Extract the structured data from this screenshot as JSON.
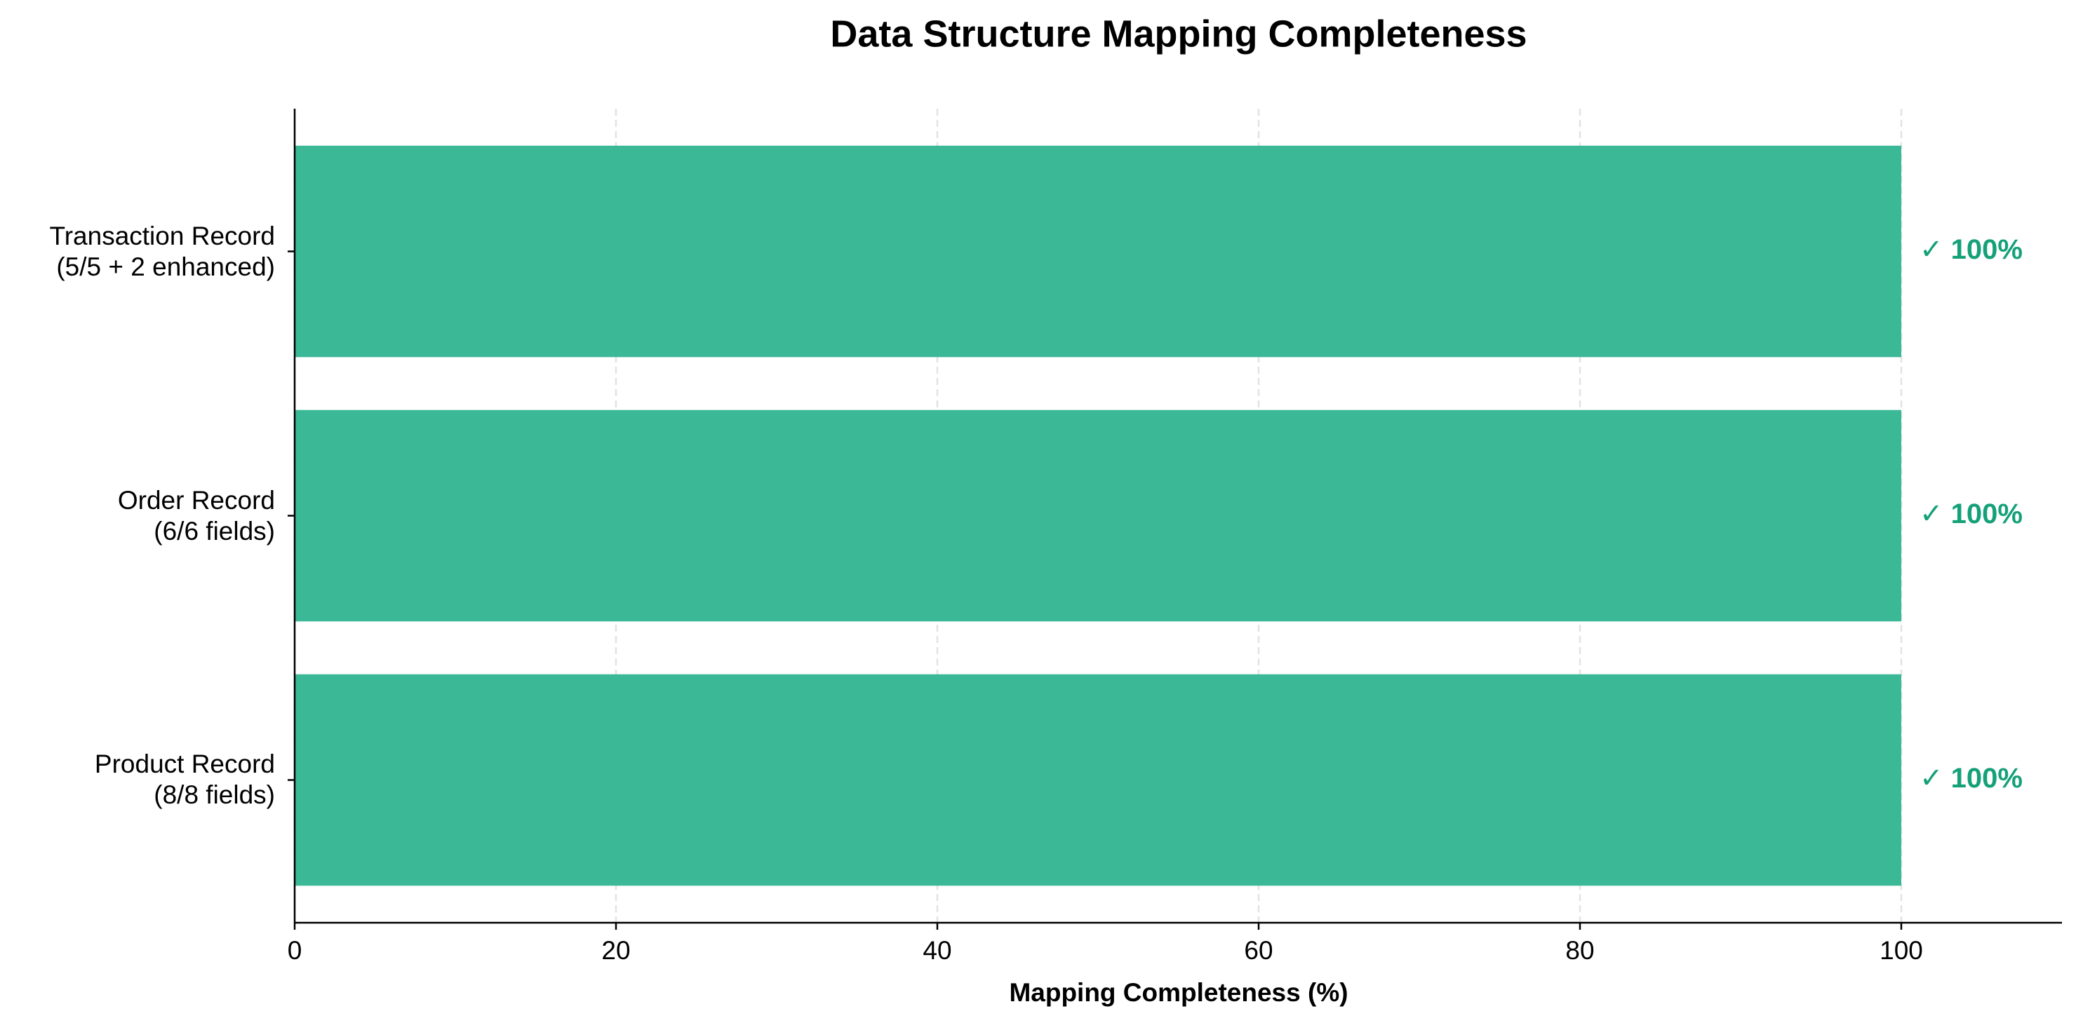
{
  "chart_data": {
    "type": "barh",
    "title": "Data Structure Mapping Completeness",
    "xlabel": "Mapping Completeness (%)",
    "categories": [
      "Transaction Record\n(5/5 + 2 enhanced)",
      "Order Record\n(6/6 fields)",
      "Product Record\n(8/8 fields)"
    ],
    "values": [
      100,
      100,
      100
    ],
    "value_labels": [
      "✓ 100%",
      "✓ 100%",
      "✓ 100%"
    ],
    "color": "#3bb896",
    "label_color": "#14a078",
    "xlim": [
      0,
      110
    ],
    "xticks": [
      0,
      20,
      40,
      60,
      80,
      100
    ],
    "grid": true
  }
}
